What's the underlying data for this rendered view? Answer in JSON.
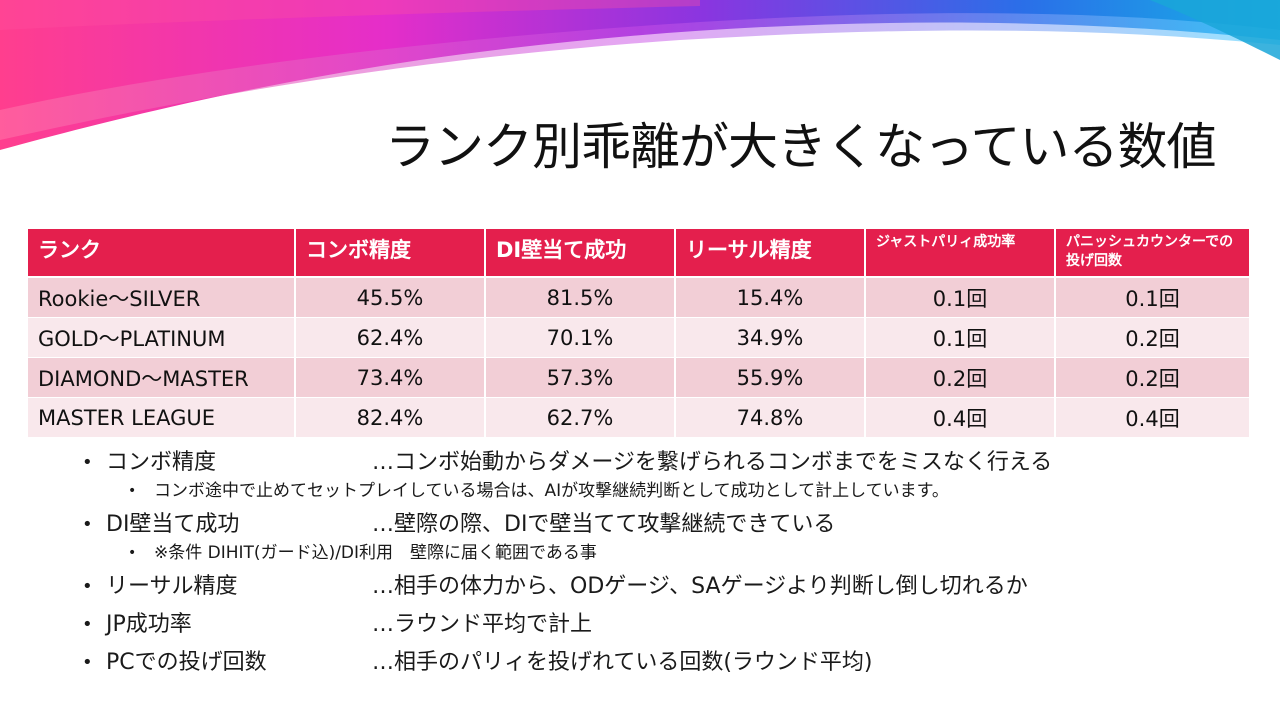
{
  "slide": {
    "title": "ランク別乖離が大きくなっている数値"
  },
  "table": {
    "headers": [
      "ランク",
      "コンボ精度",
      "DI壁当て成功",
      "リーサル精度",
      "ジャストパリィ成功率",
      "パニッシュカウンターでの投げ回数"
    ],
    "rows": [
      [
        "Rookie～SILVER",
        "45.5%",
        "81.5%",
        "15.4%",
        "0.1回",
        "0.1回"
      ],
      [
        "GOLD～PLATINUM",
        "62.4%",
        "70.1%",
        "34.9%",
        "0.1回",
        "0.2回"
      ],
      [
        "DIAMOND～MASTER",
        "73.4%",
        "57.3%",
        "55.9%",
        "0.2回",
        "0.2回"
      ],
      [
        "MASTER LEAGUE",
        "82.4%",
        "62.7%",
        "74.8%",
        "0.4回",
        "0.4回"
      ]
    ]
  },
  "notes": [
    {
      "term": "コンボ精度",
      "desc": "…コンボ始動からダメージを繋げられるコンボまでをミスなく行える",
      "sub": "コンボ途中で止めてセットプレイしている場合は、AIが攻撃継続判断として成功として計上しています。"
    },
    {
      "term": "DI壁当て成功",
      "desc": "…壁際の際、DIで壁当てて攻撃継続できている",
      "sub": "※条件 DIHIT(ガード込)/DI利用　壁際に届く範囲である事"
    },
    {
      "term": "リーサル精度",
      "desc": "…相手の体力から、ODゲージ、SAゲージより判断し倒し切れるか"
    },
    {
      "term": "JP成功率",
      "desc": "…ラウンド平均で計上"
    },
    {
      "term": "PCでの投げ回数",
      "desc": "…相手のパリィを投げれている回数(ラウンド平均)"
    }
  ],
  "colors": {
    "header": "#e41f4d",
    "row_dark": "#f2ced6",
    "row_light": "#f9e8ec"
  }
}
